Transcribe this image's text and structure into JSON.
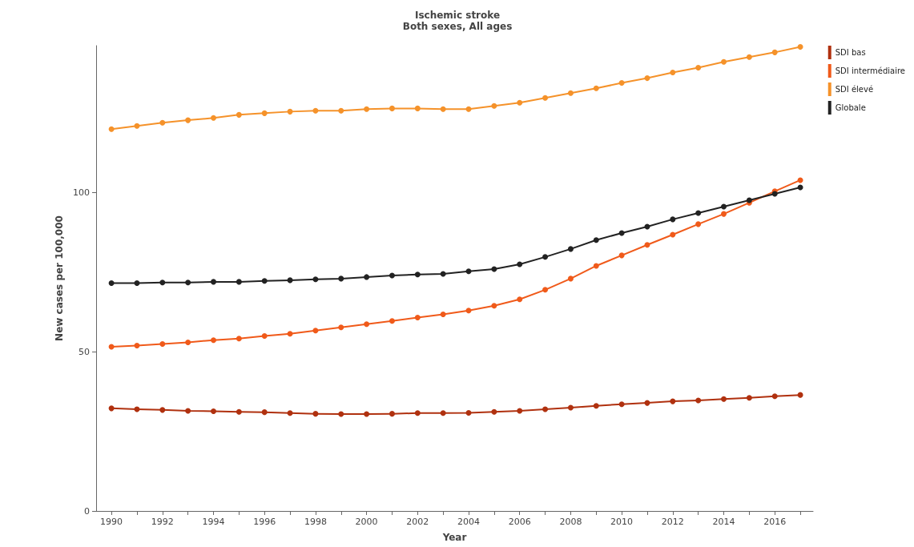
{
  "chart_data": {
    "type": "line",
    "title": "Ischemic stroke",
    "subtitle": "Both sexes, All ages",
    "xlabel": "Year",
    "ylabel": "New cases per 100,000",
    "x": [
      1990,
      1991,
      1992,
      1993,
      1994,
      1995,
      1996,
      1997,
      1998,
      1999,
      2000,
      2001,
      2002,
      2003,
      2004,
      2005,
      2006,
      2007,
      2008,
      2009,
      2010,
      2011,
      2012,
      2013,
      2014,
      2015,
      2016,
      2017
    ],
    "series": [
      {
        "name": "SDI bas",
        "color": "#b0310f",
        "values": [
          32.2,
          31.9,
          31.7,
          31.4,
          31.3,
          31.1,
          31.0,
          30.7,
          30.5,
          30.4,
          30.4,
          30.5,
          30.7,
          30.7,
          30.8,
          31.1,
          31.4,
          31.9,
          32.4,
          33.0,
          33.5,
          33.9,
          34.4,
          34.7,
          35.1,
          35.5,
          36.0,
          36.4
        ]
      },
      {
        "name": "SDI intermédiaire",
        "color": "#f05a1a",
        "values": [
          51.5,
          51.9,
          52.4,
          52.9,
          53.6,
          54.1,
          54.9,
          55.6,
          56.6,
          57.6,
          58.6,
          59.6,
          60.7,
          61.7,
          62.9,
          64.4,
          66.4,
          69.4,
          72.9,
          76.9,
          80.2,
          83.5,
          86.7,
          90.0,
          93.2,
          96.7,
          100.3,
          103.8
        ]
      },
      {
        "name": "SDI élevé",
        "color": "#f5922a",
        "values": [
          119.8,
          120.8,
          121.8,
          122.6,
          123.3,
          124.3,
          124.8,
          125.3,
          125.6,
          125.6,
          126.1,
          126.3,
          126.3,
          126.1,
          126.1,
          127.1,
          128.1,
          129.6,
          131.1,
          132.6,
          134.3,
          135.8,
          137.6,
          139.1,
          140.9,
          142.4,
          143.9,
          145.6
        ]
      },
      {
        "name": "Globale",
        "color": "#222222",
        "values": [
          71.5,
          71.5,
          71.7,
          71.7,
          71.9,
          71.9,
          72.2,
          72.4,
          72.7,
          72.9,
          73.4,
          73.9,
          74.2,
          74.4,
          75.2,
          75.9,
          77.4,
          79.7,
          82.2,
          85.0,
          87.2,
          89.2,
          91.5,
          93.5,
          95.5,
          97.5,
          99.5,
          101.5
        ]
      }
    ],
    "xlim": [
      1989.4,
      2017.5
    ],
    "xticks": [
      1990,
      {
        "value": 1991,
        "label": null
      },
      1992,
      {
        "value": 1993,
        "label": null
      },
      1994,
      {
        "value": 1995,
        "label": null
      },
      1996,
      {
        "value": 1997,
        "label": null
      },
      1998,
      {
        "value": 1999,
        "label": null
      },
      2000,
      {
        "value": 2001,
        "label": null
      },
      2002,
      {
        "value": 2003,
        "label": null
      },
      2004,
      {
        "value": 2005,
        "label": null
      },
      2006,
      {
        "value": 2007,
        "label": null
      },
      2008,
      {
        "value": 2009,
        "label": null
      },
      2010,
      {
        "value": 2011,
        "label": null
      },
      2012,
      {
        "value": 2013,
        "label": null
      },
      2014,
      {
        "value": 2015,
        "label": null
      },
      2016,
      {
        "value": 2017,
        "label": null
      }
    ],
    "ylim": [
      0,
      146
    ],
    "yticks": [
      0,
      50,
      100
    ],
    "grid": false,
    "legend": "top right",
    "marker": "circle",
    "line_style": "solid"
  }
}
